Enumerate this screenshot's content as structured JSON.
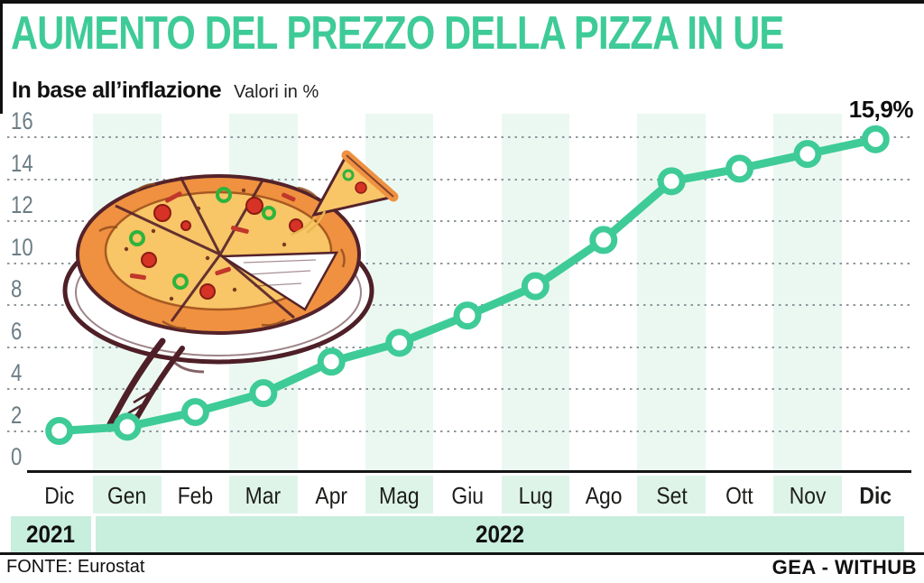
{
  "header": {
    "title": "AUMENTO DEL PREZZO DELLA PIZZA IN UE",
    "subtitle_bold": "In base all’inflazione",
    "subtitle_note": "Valori in %"
  },
  "chart_data": {
    "type": "line",
    "title": "AUMENTO DEL PREZZO DELLA PIZZA IN UE",
    "subtitle": "In base all’inflazione",
    "unit_note": "Valori in %",
    "categories": [
      "Dic",
      "Gen",
      "Feb",
      "Mar",
      "Apr",
      "Mag",
      "Giu",
      "Lug",
      "Ago",
      "Set",
      "Ott",
      "Nov",
      "Dic"
    ],
    "values": [
      2.0,
      2.2,
      2.9,
      3.8,
      5.3,
      6.2,
      7.5,
      8.9,
      11.1,
      13.9,
      14.5,
      15.2,
      15.9
    ],
    "highlight_category_index": 12,
    "end_label": "15,9%",
    "ylim": [
      0,
      16
    ],
    "y_ticks": [
      0,
      2,
      4,
      6,
      8,
      10,
      12,
      14,
      16
    ],
    "grid": "dotted-horizontal",
    "legend": "none",
    "line_color": "#3ecb98",
    "marker_fill": "#ffffff",
    "stripe_color": "#ebf8f2",
    "band_color": "#c8eede",
    "year_bands": [
      {
        "label": "2021",
        "first_month_index": 0,
        "last_month_index": 0
      },
      {
        "label": "2022",
        "first_month_index": 1,
        "last_month_index": 12
      }
    ]
  },
  "footer": {
    "source": "FONTE: Eurostat",
    "credit": "GEA - WITHUB"
  }
}
